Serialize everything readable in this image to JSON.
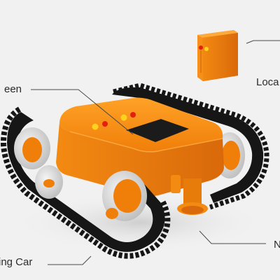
{
  "callouts": {
    "screen": "een",
    "locator": "Loca",
    "car": "ing Car",
    "bottom_right": "N"
  },
  "colors": {
    "background": "#f1f1f1",
    "body_orange": "#f58a0f",
    "track_black": "#161616",
    "wheel_silver": "#d9d9d9",
    "screen_black": "#1b1b1b",
    "led_red": "#e3200f",
    "led_yellow": "#ffd21f",
    "leader_line": "#4a4a4a"
  }
}
